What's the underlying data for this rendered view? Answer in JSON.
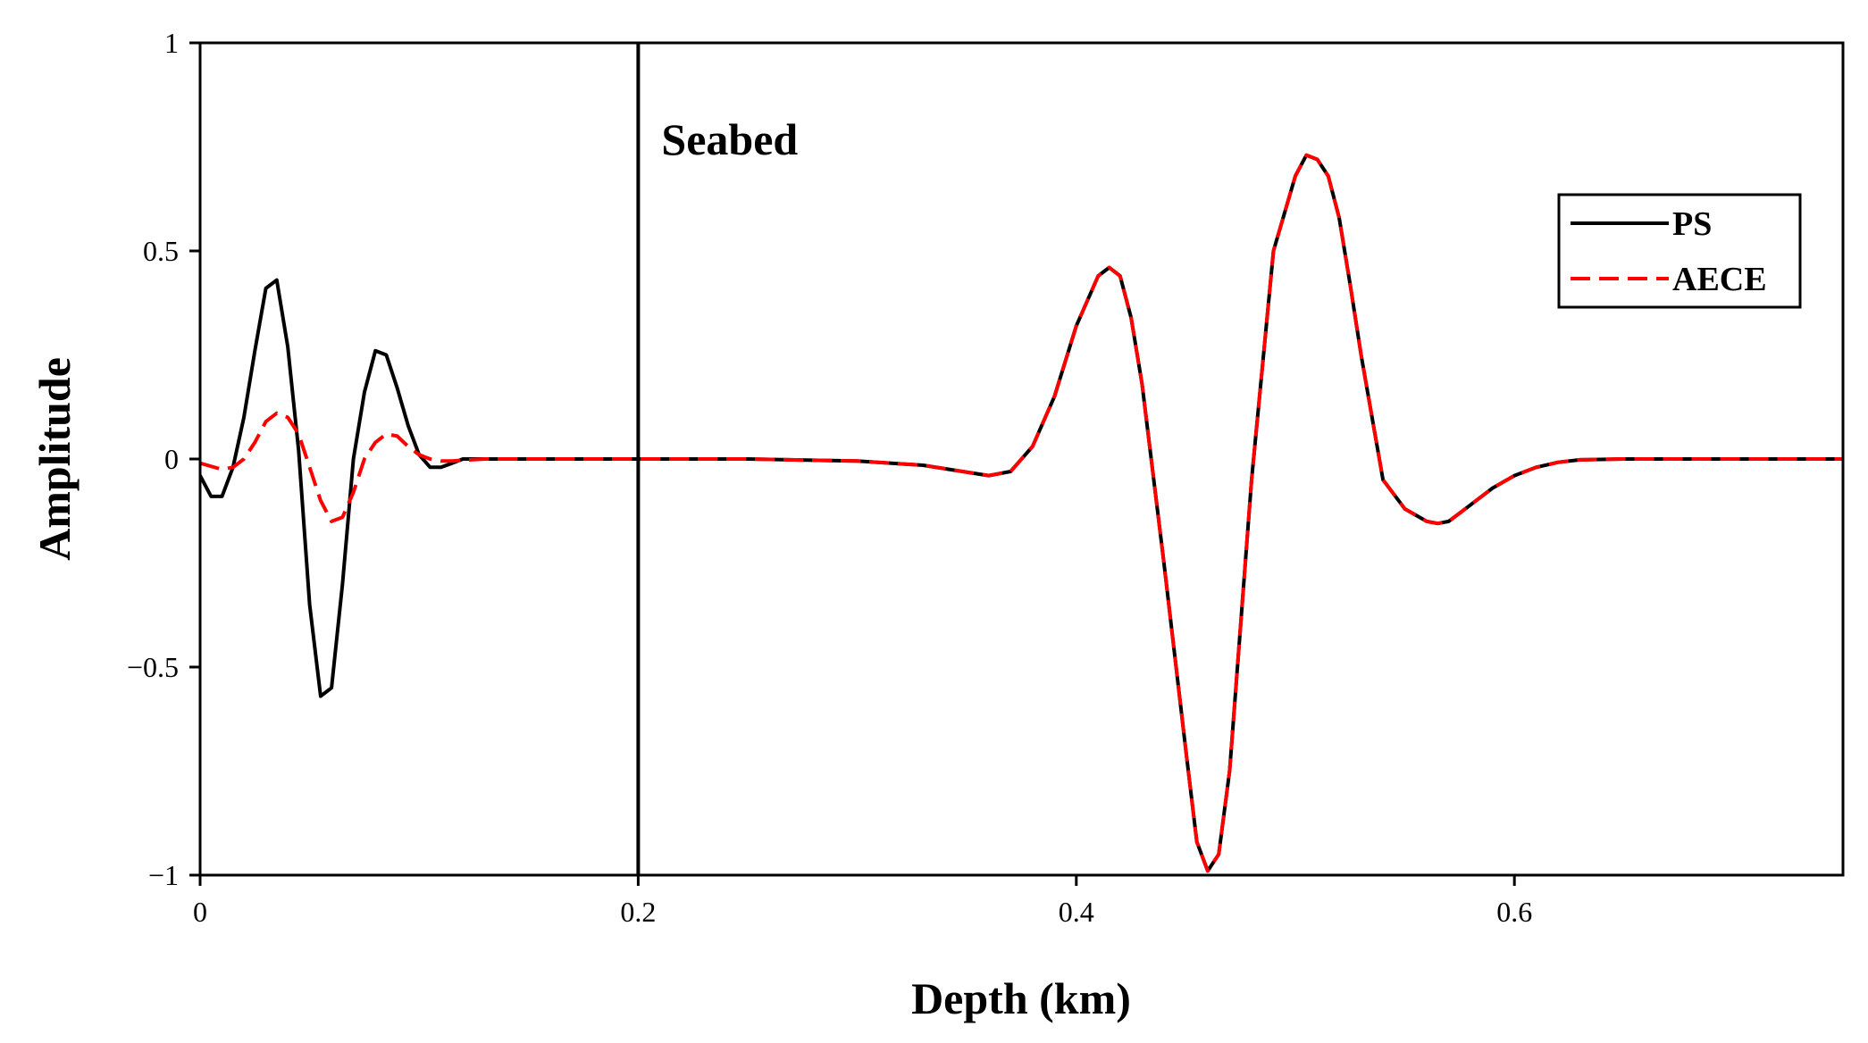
{
  "chart_data": {
    "type": "line",
    "xlabel": "Depth (km)",
    "ylabel": "Amplitude",
    "xlim": [
      0,
      0.75
    ],
    "ylim": [
      -1,
      1
    ],
    "xticks": [
      0,
      0.2,
      0.4,
      0.6
    ],
    "xtick_labels": [
      "0",
      "0.2",
      "0.4",
      "0.6"
    ],
    "yticks": [
      -1,
      -0.5,
      0,
      0.5,
      1
    ],
    "ytick_labels": [
      "−1",
      "−0.5",
      "0",
      "0.5",
      "1"
    ],
    "grid": false,
    "legend_position": "top-right",
    "annotation": {
      "text": "Seabed",
      "x": 0.2
    },
    "series": [
      {
        "name": "PS",
        "color": "#000000",
        "style": "solid",
        "x": [
          0,
          0.005,
          0.01,
          0.015,
          0.02,
          0.025,
          0.03,
          0.035,
          0.04,
          0.045,
          0.05,
          0.055,
          0.06,
          0.065,
          0.07,
          0.075,
          0.08,
          0.085,
          0.09,
          0.095,
          0.1,
          0.105,
          0.11,
          0.115,
          0.12,
          0.13,
          0.14,
          0.15,
          0.2,
          0.25,
          0.3,
          0.33,
          0.36,
          0.37,
          0.38,
          0.39,
          0.4,
          0.41,
          0.415,
          0.42,
          0.425,
          0.43,
          0.44,
          0.45,
          0.455,
          0.46,
          0.465,
          0.47,
          0.475,
          0.48,
          0.49,
          0.5,
          0.505,
          0.51,
          0.515,
          0.52,
          0.525,
          0.53,
          0.54,
          0.55,
          0.56,
          0.565,
          0.57,
          0.575,
          0.58,
          0.59,
          0.6,
          0.61,
          0.62,
          0.63,
          0.65,
          0.7,
          0.75
        ],
        "y": [
          -0.04,
          -0.09,
          -0.09,
          -0.02,
          0.1,
          0.26,
          0.41,
          0.43,
          0.27,
          0.02,
          -0.35,
          -0.57,
          -0.55,
          -0.3,
          0.0,
          0.16,
          0.26,
          0.25,
          0.17,
          0.08,
          0.01,
          -0.02,
          -0.02,
          -0.01,
          0.0,
          0.0,
          0.0,
          0.0,
          0.0,
          0.0,
          -0.005,
          -0.015,
          -0.04,
          -0.03,
          0.03,
          0.15,
          0.32,
          0.44,
          0.46,
          0.44,
          0.34,
          0.18,
          -0.25,
          -0.7,
          -0.92,
          -0.99,
          -0.95,
          -0.75,
          -0.4,
          -0.05,
          0.5,
          0.68,
          0.73,
          0.72,
          0.68,
          0.58,
          0.42,
          0.25,
          -0.05,
          -0.12,
          -0.15,
          -0.155,
          -0.15,
          -0.13,
          -0.11,
          -0.07,
          -0.04,
          -0.02,
          -0.008,
          -0.002,
          0.0,
          0.0,
          0.0
        ]
      },
      {
        "name": "AECE",
        "color": "#ff0000",
        "style": "dashed",
        "x": [
          0,
          0.01,
          0.015,
          0.02,
          0.025,
          0.03,
          0.035,
          0.04,
          0.045,
          0.05,
          0.055,
          0.06,
          0.065,
          0.07,
          0.075,
          0.08,
          0.085,
          0.09,
          0.095,
          0.1,
          0.105,
          0.11,
          0.115,
          0.12,
          0.13,
          0.14,
          0.15,
          0.2,
          0.25,
          0.3,
          0.33,
          0.36,
          0.37,
          0.38,
          0.39,
          0.4,
          0.41,
          0.415,
          0.42,
          0.425,
          0.43,
          0.44,
          0.45,
          0.455,
          0.46,
          0.465,
          0.47,
          0.475,
          0.48,
          0.49,
          0.5,
          0.505,
          0.51,
          0.515,
          0.52,
          0.525,
          0.53,
          0.54,
          0.55,
          0.56,
          0.565,
          0.57,
          0.575,
          0.58,
          0.59,
          0.6,
          0.61,
          0.62,
          0.63,
          0.65,
          0.7,
          0.75
        ],
        "y": [
          -0.01,
          -0.025,
          -0.02,
          0.0,
          0.04,
          0.09,
          0.11,
          0.1,
          0.06,
          -0.02,
          -0.1,
          -0.15,
          -0.14,
          -0.08,
          0.0,
          0.04,
          0.06,
          0.055,
          0.03,
          0.01,
          0.0,
          -0.005,
          -0.005,
          -0.003,
          0.0,
          0.0,
          0.0,
          0.0,
          0.0,
          -0.005,
          -0.015,
          -0.04,
          -0.03,
          0.03,
          0.15,
          0.32,
          0.44,
          0.46,
          0.44,
          0.34,
          0.18,
          -0.25,
          -0.7,
          -0.92,
          -0.99,
          -0.95,
          -0.75,
          -0.4,
          -0.05,
          0.5,
          0.68,
          0.73,
          0.72,
          0.68,
          0.58,
          0.42,
          0.25,
          -0.05,
          -0.12,
          -0.15,
          -0.155,
          -0.15,
          -0.13,
          -0.11,
          -0.07,
          -0.04,
          -0.02,
          -0.008,
          -0.002,
          0.0,
          0.0,
          0.0
        ]
      }
    ]
  }
}
